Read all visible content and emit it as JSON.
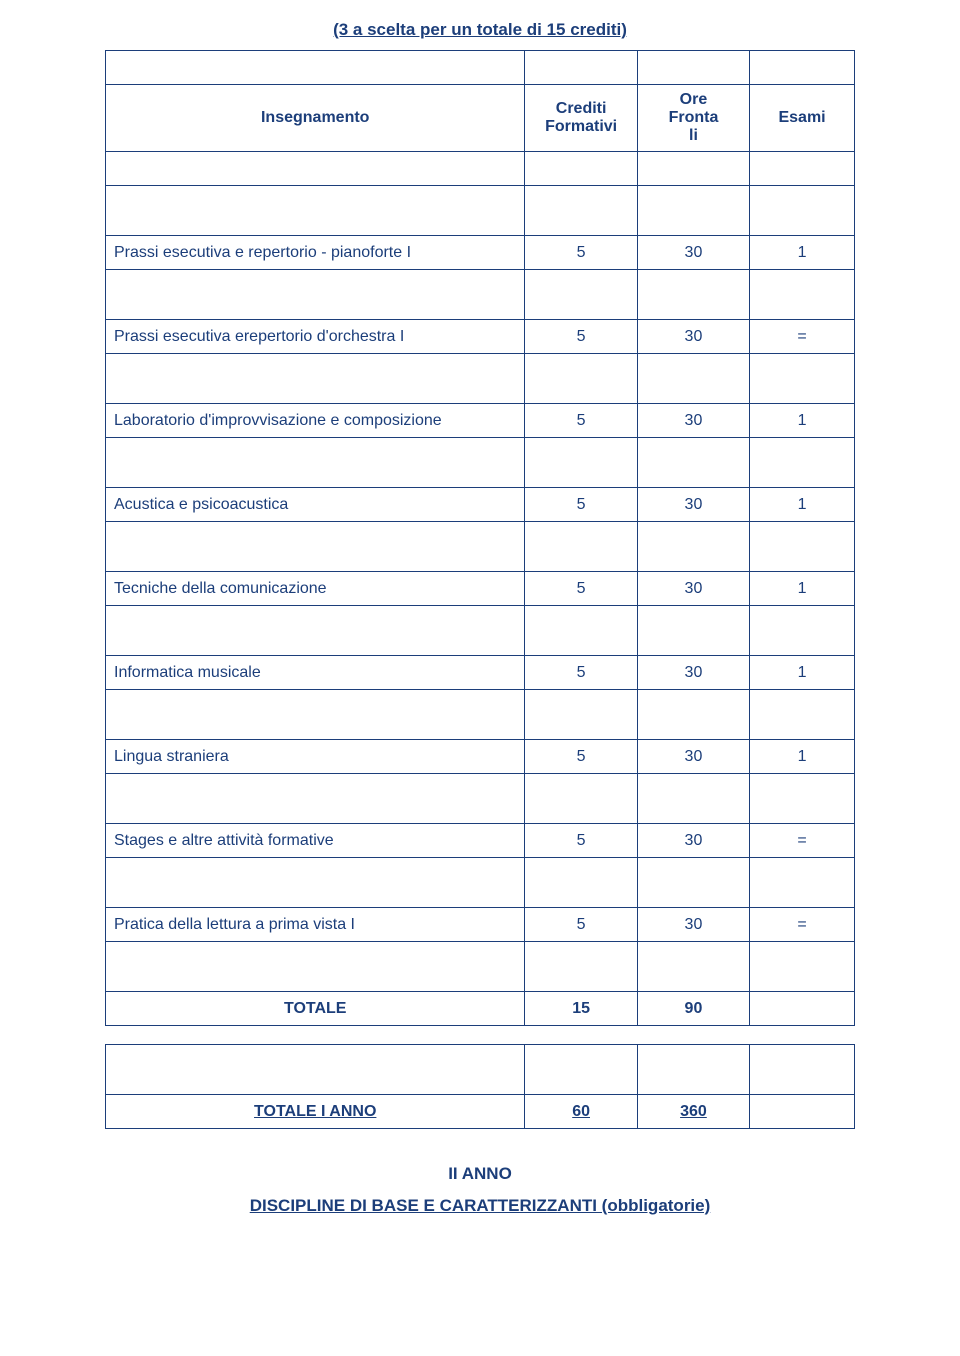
{
  "title": "(3 a scelta per un totale di 15 crediti)",
  "headers": {
    "name": "Insegnamento",
    "c1": "Crediti Formativi",
    "c2": "Ore\nFronta\nli",
    "c3": "Esami"
  },
  "rows": [
    {
      "name": "Prassi esecutiva e repertorio - pianoforte I",
      "c1": "5",
      "c2": "30",
      "c3": "1"
    },
    {
      "name": "Prassi esecutiva erepertorio d'orchestra I",
      "c1": "5",
      "c2": "30",
      "c3": "="
    },
    {
      "name": "Laboratorio d'improvvisazione e composizione",
      "c1": "5",
      "c2": "30",
      "c3": "1"
    },
    {
      "name": "Acustica e psicoacustica",
      "c1": "5",
      "c2": "30",
      "c3": "1"
    },
    {
      "name": "Tecniche della comunicazione",
      "c1": "5",
      "c2": "30",
      "c3": "1"
    },
    {
      "name": "Informatica musicale",
      "c1": "5",
      "c2": "30",
      "c3": "1"
    },
    {
      "name": "Lingua straniera",
      "c1": "5",
      "c2": "30",
      "c3": "1"
    },
    {
      "name": "Stages e altre attività formative",
      "c1": "5",
      "c2": "30",
      "c3": "="
    },
    {
      "name": "Pratica della lettura a prima vista I",
      "c1": "5",
      "c2": "30",
      "c3": "="
    }
  ],
  "totale": {
    "name": "TOTALE",
    "c1": "15",
    "c2": "90",
    "c3": ""
  },
  "totale_anno": {
    "name": "TOTALE I ANNO",
    "c1": "60",
    "c2": "360",
    "c3": ""
  },
  "footer": {
    "year": "II ANNO",
    "discipline": "DISCIPLINE DI BASE E CARATTERIZZANTI (obbligatorie)"
  },
  "colors": {
    "text": "#1c3e7a",
    "border": "#1c3e7a",
    "background": "#ffffff"
  }
}
